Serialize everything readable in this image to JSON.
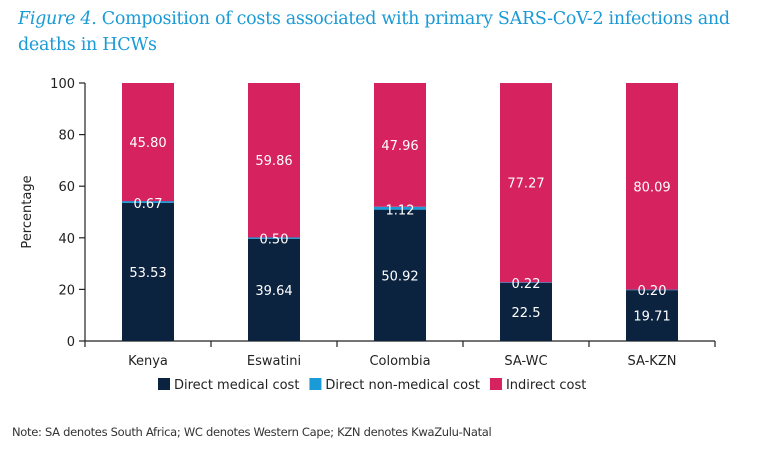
{
  "title": {
    "figure_label": "Figure 4.",
    "text": " Composition of costs associated with primary SARS-CoV-2 infections and deaths in HCWs"
  },
  "note": "Note: SA denotes South Africa; WC denotes Western Cape; KZN denotes KwaZulu-Natal",
  "chart_data": {
    "type": "bar",
    "stacked": true,
    "title": "Figure 4. Composition of costs associated with primary SARS-CoV-2 infections and deaths in HCWs",
    "xlabel": "",
    "ylabel": "Percentage",
    "ylim": [
      0,
      100
    ],
    "yticks": [
      0,
      20,
      40,
      60,
      80,
      100
    ],
    "grid": false,
    "legend_position": "bottom-center",
    "categories": [
      "Kenya",
      "Eswatini",
      "Colombia",
      "SA-WC",
      "SA-KZN"
    ],
    "series": [
      {
        "name": "Direct medical cost",
        "color": "#0c2340",
        "values": [
          53.53,
          39.64,
          50.92,
          22.5,
          19.71
        ],
        "labels": [
          "53.53",
          "39.64",
          "50.92",
          "22.5",
          "19.71"
        ]
      },
      {
        "name": "Direct non-medical cost",
        "color": "#1a9ad6",
        "values": [
          0.67,
          0.5,
          1.12,
          0.22,
          0.2
        ],
        "labels": [
          "0.67",
          "0.50",
          "1.12",
          "0.22",
          "0.20"
        ]
      },
      {
        "name": "Indirect cost",
        "color": "#d6225f",
        "values": [
          45.8,
          59.86,
          47.96,
          77.27,
          80.09
        ],
        "labels": [
          "45.80",
          "59.86",
          "47.96",
          "77.27",
          "80.09"
        ]
      }
    ]
  }
}
